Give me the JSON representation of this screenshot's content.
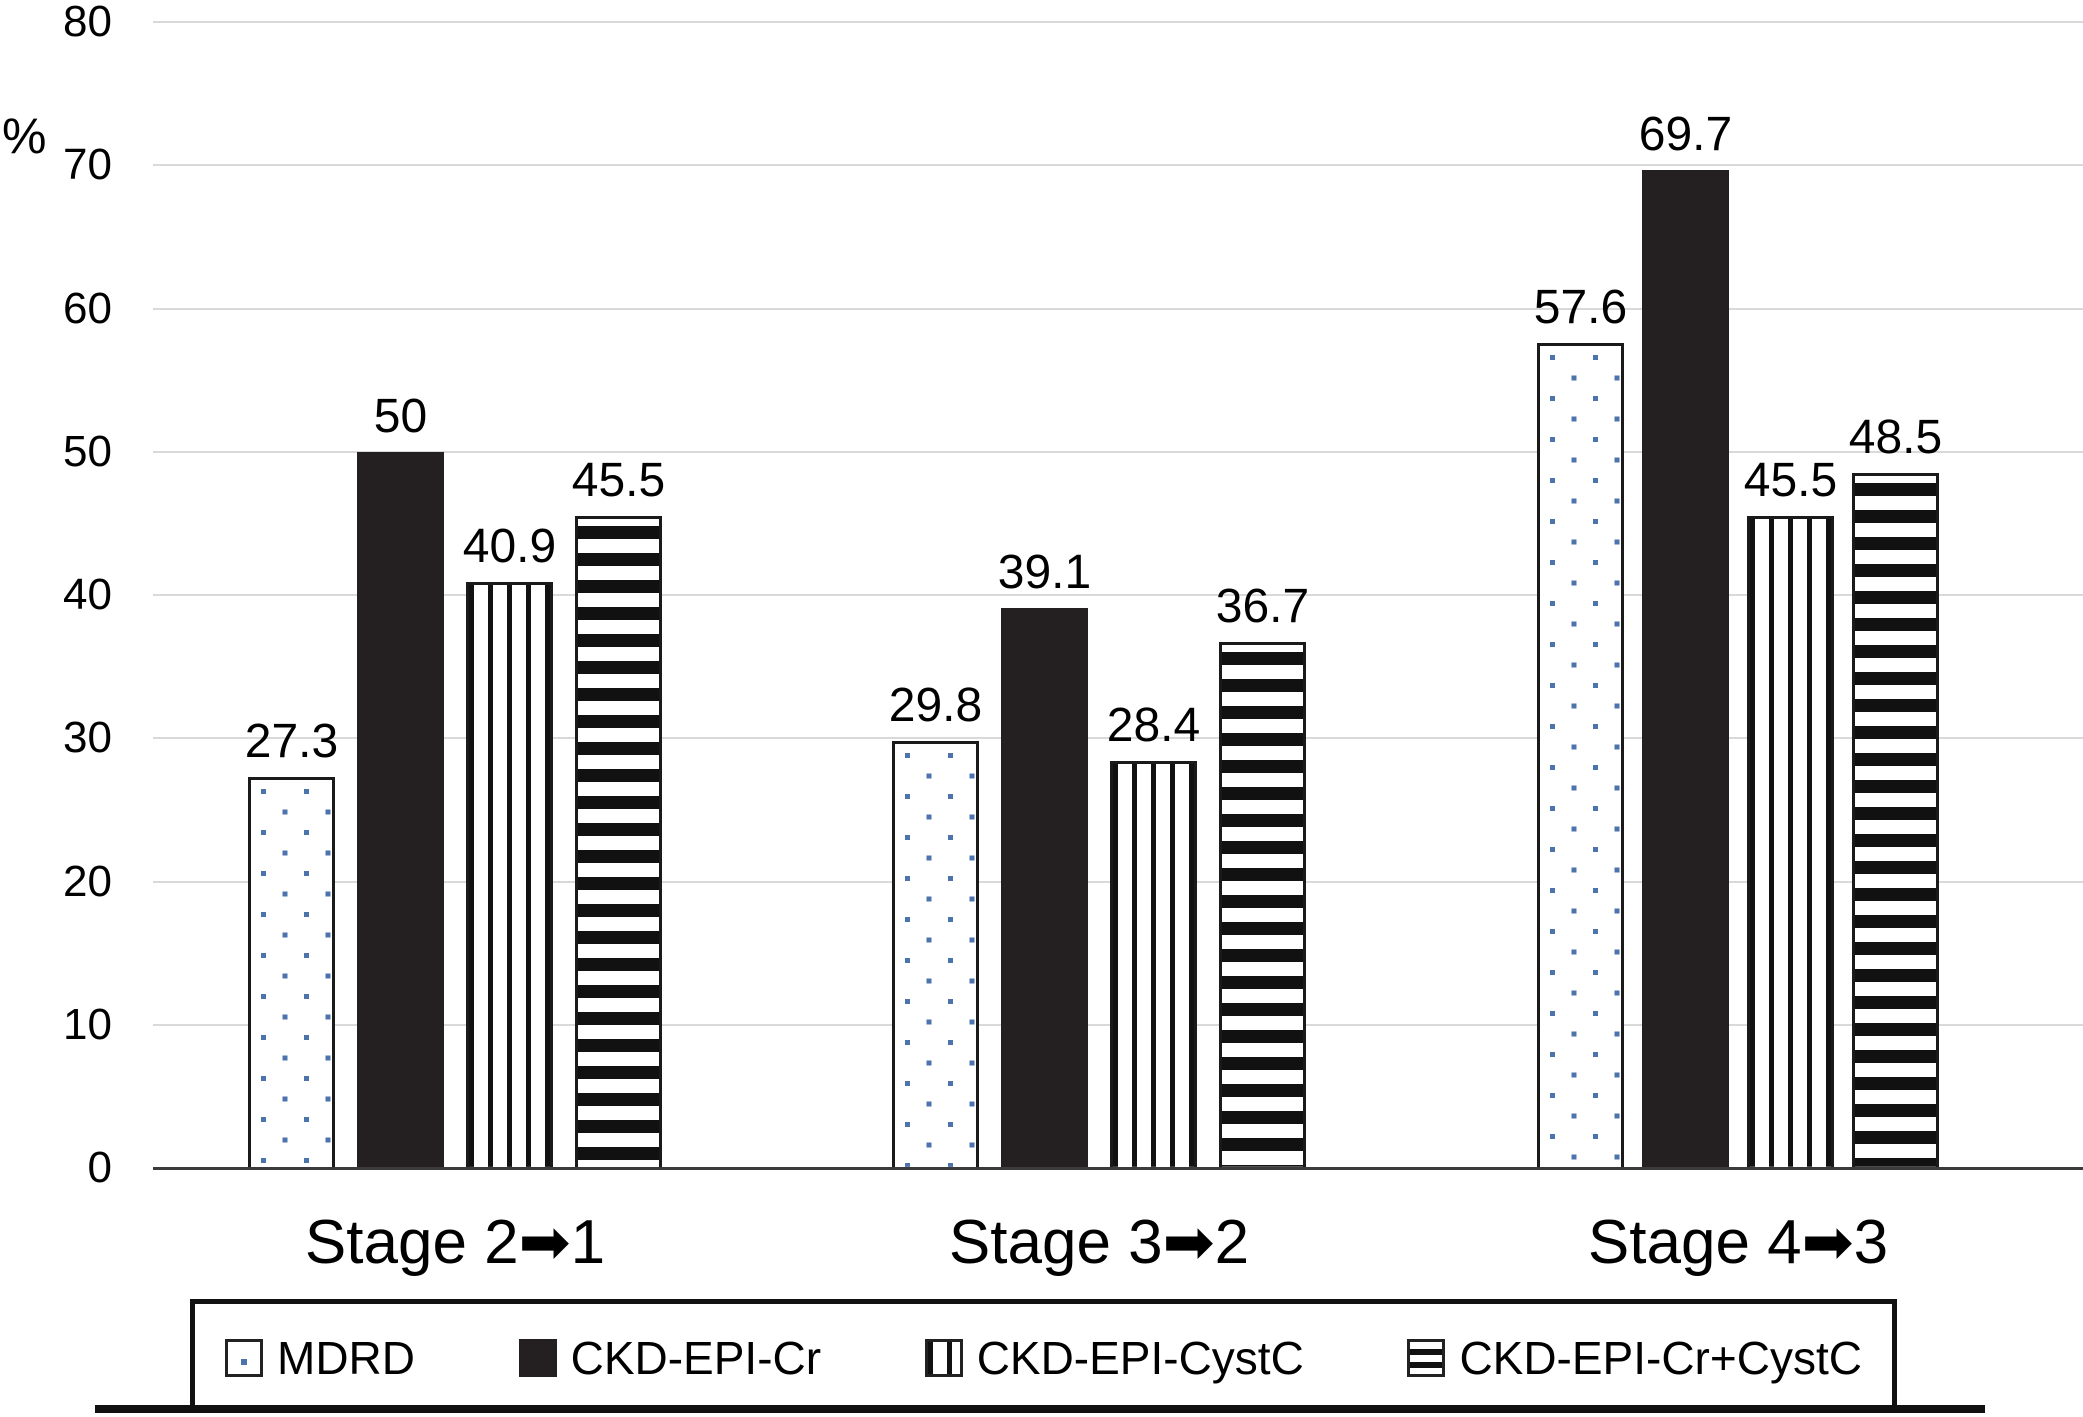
{
  "chart_data": {
    "type": "bar",
    "title": "",
    "xlabel": "",
    "ylabel": "%",
    "categories": [
      "Stage 2➡1",
      "Stage 3➡2",
      "Stage 4➡3"
    ],
    "series": [
      {
        "name": "MDRD",
        "pattern": "dots",
        "values": [
          27.3,
          29.8,
          57.6
        ],
        "labels": [
          "27.3",
          "29.8",
          "57.6"
        ]
      },
      {
        "name": "CKD-EPI-Cr",
        "pattern": "solid",
        "values": [
          50.0,
          39.1,
          69.7
        ],
        "labels": [
          "50",
          "39.1",
          "69.7"
        ]
      },
      {
        "name": "CKD-EPI-CystC",
        "pattern": "vertical-stripes",
        "values": [
          40.9,
          28.4,
          45.5
        ],
        "labels": [
          "40.9",
          "28.4",
          "45.5"
        ]
      },
      {
        "name": "CKD-EPI-Cr+CystC",
        "pattern": "horizontal-stripes",
        "values": [
          45.5,
          36.7,
          48.5
        ],
        "labels": [
          "45.5",
          "36.7",
          "48.5"
        ]
      }
    ],
    "yticks": [
      0,
      10,
      20,
      30,
      40,
      50,
      60,
      70,
      80
    ],
    "ylim": [
      0,
      80
    ],
    "grid": "horizontal-gridlines",
    "legend_position": "bottom",
    "colors": {
      "solid_bar": "#241f20",
      "dot_blue": "#4d73ad",
      "stripe_black": "#111111",
      "gridline": "#d9d9d9",
      "axis_line": "#3b3b3b",
      "text": "#000000",
      "background": "#ffffff",
      "legend_border": "#111111"
    }
  }
}
